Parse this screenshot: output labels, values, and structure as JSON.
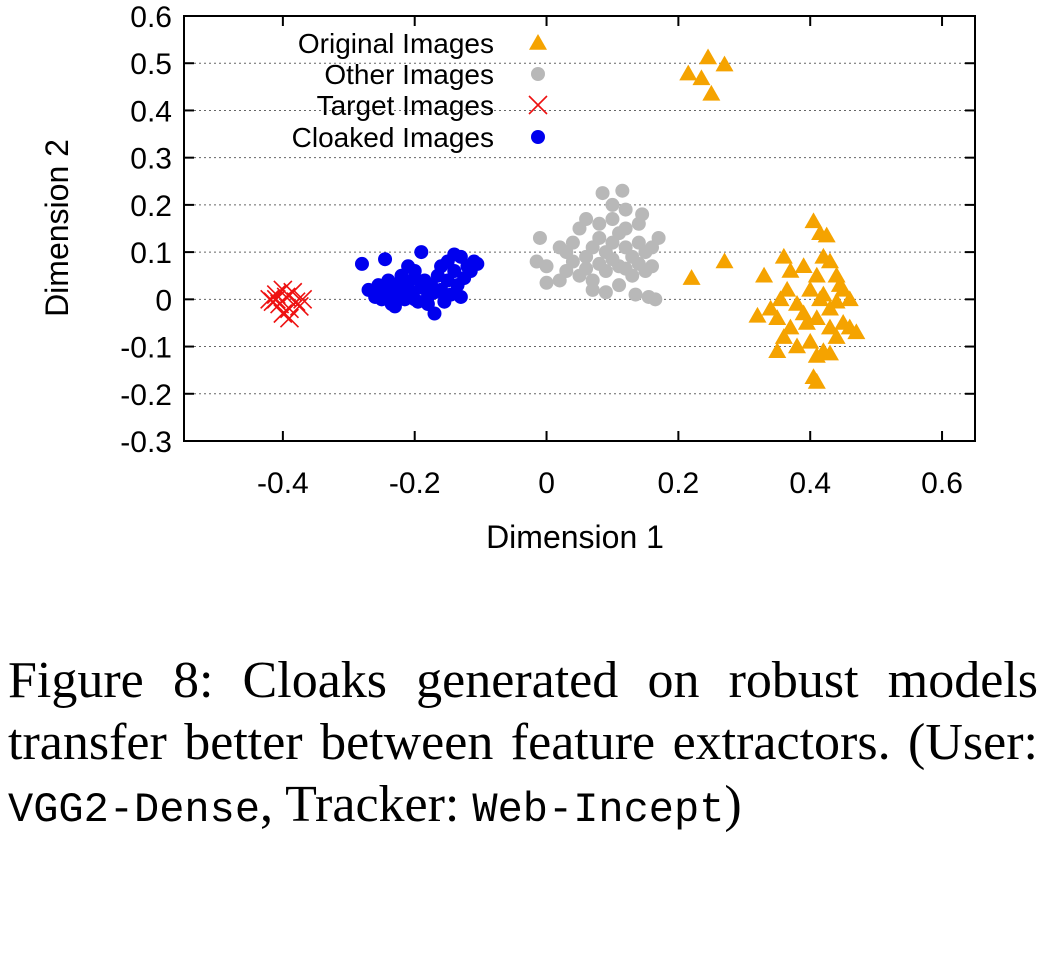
{
  "chart_data": {
    "type": "scatter",
    "xlabel": "Dimension 1",
    "ylabel": "Dimension 2",
    "xlim": [
      -0.55,
      0.65
    ],
    "ylim": [
      -0.3,
      0.6
    ],
    "xticks": [
      "-0.4",
      "-0.2",
      "0",
      "0.2",
      "0.4",
      "0.6"
    ],
    "xtick_values": [
      -0.4,
      -0.2,
      0,
      0.2,
      0.4,
      0.6
    ],
    "yticks": [
      "0.6",
      "0.5",
      "0.4",
      "0.3",
      "0.2",
      "0.1",
      "0",
      "-0.1",
      "-0.2",
      "-0.3"
    ],
    "ytick_values": [
      0.6,
      0.5,
      0.4,
      0.3,
      0.2,
      0.1,
      0,
      -0.1,
      -0.2,
      -0.3
    ],
    "grid": "horizontal dotted",
    "legend_position": "top-left",
    "series": [
      {
        "name": "Original Images",
        "marker": "triangle",
        "color": "#f5a300",
        "points": [
          [
            0.215,
            0.478
          ],
          [
            0.235,
            0.468
          ],
          [
            0.245,
            0.512
          ],
          [
            0.27,
            0.497
          ],
          [
            0.25,
            0.435
          ],
          [
            0.22,
            0.045
          ],
          [
            0.27,
            0.08
          ],
          [
            0.33,
            0.05
          ],
          [
            0.36,
            0.09
          ],
          [
            0.37,
            0.06
          ],
          [
            0.39,
            0.07
          ],
          [
            0.41,
            0.05
          ],
          [
            0.42,
            0.09
          ],
          [
            0.43,
            0.08
          ],
          [
            0.44,
            0.05
          ],
          [
            0.405,
            0.165
          ],
          [
            0.415,
            0.14
          ],
          [
            0.425,
            0.135
          ],
          [
            0.34,
            -0.02
          ],
          [
            0.355,
            0.0
          ],
          [
            0.365,
            0.02
          ],
          [
            0.38,
            -0.01
          ],
          [
            0.4,
            0.02
          ],
          [
            0.42,
            0.01
          ],
          [
            0.44,
            -0.005
          ],
          [
            0.45,
            0.02
          ],
          [
            0.46,
            0.0
          ],
          [
            0.32,
            -0.035
          ],
          [
            0.35,
            -0.04
          ],
          [
            0.37,
            -0.06
          ],
          [
            0.39,
            -0.03
          ],
          [
            0.41,
            -0.04
          ],
          [
            0.43,
            -0.02
          ],
          [
            0.45,
            -0.05
          ],
          [
            0.47,
            -0.07
          ],
          [
            0.36,
            -0.08
          ],
          [
            0.38,
            -0.1
          ],
          [
            0.4,
            -0.09
          ],
          [
            0.42,
            -0.11
          ],
          [
            0.44,
            -0.08
          ],
          [
            0.46,
            -0.06
          ],
          [
            0.35,
            -0.11
          ],
          [
            0.41,
            -0.12
          ],
          [
            0.43,
            -0.115
          ],
          [
            0.405,
            -0.165
          ],
          [
            0.41,
            -0.175
          ],
          [
            0.445,
            0.03
          ],
          [
            0.395,
            -0.05
          ],
          [
            0.43,
            -0.06
          ],
          [
            0.415,
            0.0
          ]
        ]
      },
      {
        "name": "Other Images",
        "marker": "circle",
        "color": "#b8b8b8",
        "points": [
          [
            -0.015,
            0.08
          ],
          [
            -0.01,
            0.13
          ],
          [
            0.0,
            0.035
          ],
          [
            0.02,
            0.04
          ],
          [
            0.0,
            0.07
          ],
          [
            0.085,
            0.225
          ],
          [
            0.115,
            0.23
          ],
          [
            0.12,
            0.19
          ],
          [
            0.145,
            0.18
          ],
          [
            0.1,
            0.2
          ],
          [
            0.14,
            0.16
          ],
          [
            0.03,
            0.1
          ],
          [
            0.04,
            0.12
          ],
          [
            0.05,
            0.15
          ],
          [
            0.06,
            0.09
          ],
          [
            0.07,
            0.11
          ],
          [
            0.08,
            0.13
          ],
          [
            0.09,
            0.1
          ],
          [
            0.1,
            0.12
          ],
          [
            0.11,
            0.14
          ],
          [
            0.12,
            0.11
          ],
          [
            0.13,
            0.09
          ],
          [
            0.14,
            0.12
          ],
          [
            0.15,
            0.1
          ],
          [
            0.16,
            0.11
          ],
          [
            0.17,
            0.13
          ],
          [
            0.03,
            0.06
          ],
          [
            0.05,
            0.05
          ],
          [
            0.07,
            0.04
          ],
          [
            0.09,
            0.06
          ],
          [
            0.11,
            0.07
          ],
          [
            0.13,
            0.05
          ],
          [
            0.15,
            0.06
          ],
          [
            0.06,
            0.17
          ],
          [
            0.08,
            0.16
          ],
          [
            0.1,
            0.17
          ],
          [
            0.12,
            0.15
          ],
          [
            0.04,
            0.08
          ],
          [
            0.06,
            0.065
          ],
          [
            0.08,
            0.075
          ],
          [
            0.1,
            0.085
          ],
          [
            0.12,
            0.065
          ],
          [
            0.14,
            0.075
          ],
          [
            0.16,
            0.07
          ],
          [
            0.155,
            0.005
          ],
          [
            0.165,
            0.0
          ],
          [
            0.135,
            0.01
          ],
          [
            0.07,
            0.02
          ],
          [
            0.09,
            0.015
          ],
          [
            0.11,
            0.03
          ],
          [
            0.02,
            0.11
          ]
        ]
      },
      {
        "name": "Target Images",
        "marker": "x",
        "color": "#ee1111",
        "points": [
          [
            -0.42,
            0.0
          ],
          [
            -0.41,
            0.01
          ],
          [
            -0.405,
            -0.01
          ],
          [
            -0.4,
            0.02
          ],
          [
            -0.395,
            0.005
          ],
          [
            -0.39,
            -0.02
          ],
          [
            -0.385,
            0.015
          ],
          [
            -0.38,
            -0.005
          ],
          [
            -0.375,
            -0.015
          ],
          [
            -0.37,
            0.0
          ],
          [
            -0.4,
            -0.03
          ],
          [
            -0.39,
            -0.04
          ],
          [
            -0.41,
            0.0
          ],
          [
            -0.415,
            -0.005
          ]
        ]
      },
      {
        "name": "Cloaked Images",
        "marker": "circle",
        "color": "#0000ee",
        "points": [
          [
            -0.28,
            0.075
          ],
          [
            -0.245,
            0.085
          ],
          [
            -0.19,
            0.1
          ],
          [
            -0.14,
            0.095
          ],
          [
            -0.13,
            0.09
          ],
          [
            -0.105,
            0.075
          ],
          [
            -0.27,
            0.02
          ],
          [
            -0.26,
            0.005
          ],
          [
            -0.255,
            0.03
          ],
          [
            -0.25,
            0.0
          ],
          [
            -0.245,
            0.02
          ],
          [
            -0.24,
            0.04
          ],
          [
            -0.235,
            -0.01
          ],
          [
            -0.23,
            0.03
          ],
          [
            -0.225,
            0.01
          ],
          [
            -0.22,
            0.05
          ],
          [
            -0.215,
            0.0
          ],
          [
            -0.21,
            0.035
          ],
          [
            -0.205,
            0.015
          ],
          [
            -0.2,
            0.045
          ],
          [
            -0.195,
            -0.005
          ],
          [
            -0.19,
            0.025
          ],
          [
            -0.185,
            0.04
          ],
          [
            -0.18,
            0.005
          ],
          [
            -0.175,
            0.03
          ],
          [
            -0.17,
            0.015
          ],
          [
            -0.165,
            0.05
          ],
          [
            -0.16,
            0.02
          ],
          [
            -0.155,
            -0.005
          ],
          [
            -0.15,
            0.04
          ],
          [
            -0.145,
            0.01
          ],
          [
            -0.14,
            0.06
          ],
          [
            -0.135,
            0.03
          ],
          [
            -0.13,
            0.005
          ],
          [
            -0.125,
            0.045
          ],
          [
            -0.12,
            0.07
          ],
          [
            -0.115,
            0.06
          ],
          [
            -0.11,
            0.08
          ],
          [
            -0.2,
            0.06
          ],
          [
            -0.21,
            0.07
          ],
          [
            -0.17,
            -0.03
          ],
          [
            -0.23,
            -0.015
          ],
          [
            -0.18,
            -0.01
          ],
          [
            -0.16,
            0.07
          ],
          [
            -0.15,
            0.08
          ],
          [
            -0.2,
            0.0
          ],
          [
            -0.22,
            0.025
          ],
          [
            -0.24,
            0.01
          ]
        ]
      }
    ]
  },
  "caption": {
    "line1": "Figure 8: Cloaks generated on robust models transfer better between feature extractors. (User: ",
    "code1": "VGG2-Dense",
    "mid": ", Tracker: ",
    "code2": "Web-Incept",
    "end": ")"
  }
}
